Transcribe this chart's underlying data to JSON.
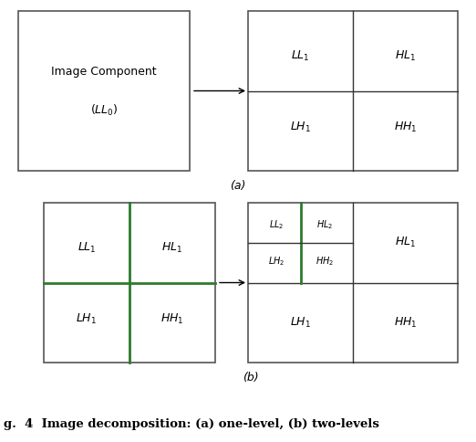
{
  "fig_width": 5.22,
  "fig_height": 4.84,
  "dpi": 100,
  "bg_color": "#ffffff",
  "caption": "g.  4  Image decomposition: (a) one-level, (b) two-levels",
  "caption_fontsize": 9.5,
  "label_fontsize": 9,
  "label_fontsize_small": 7,
  "green_color": "#2d7a2d",
  "box_color": "#555555",
  "dark_color": "#333333",
  "arrow_color": "#000000"
}
